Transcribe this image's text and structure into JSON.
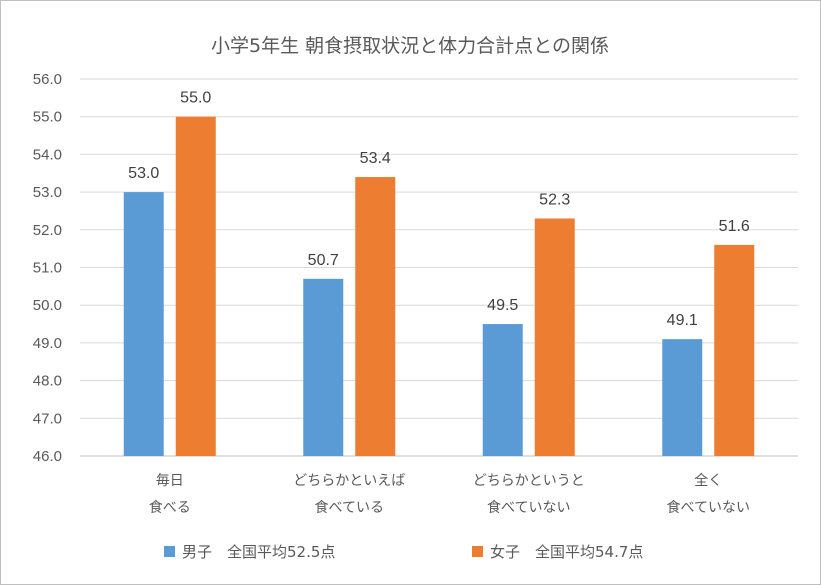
{
  "chart_data": {
    "type": "bar",
    "title": "小学5年生 朝食摂取状況と体力合計点との関係",
    "categories": [
      [
        "毎日",
        "食べる"
      ],
      [
        "どちらかといえば",
        "食べている"
      ],
      [
        "どちらかというと",
        "食べていない"
      ],
      [
        "全く",
        "食べていない"
      ]
    ],
    "series": [
      {
        "name": "男子　全国平均52.5点",
        "color": "#5b9bd5",
        "values": [
          53.0,
          50.7,
          49.5,
          49.1
        ]
      },
      {
        "name": "女子　全国平均54.7点",
        "color": "#ed7d31",
        "values": [
          55.0,
          53.4,
          52.3,
          51.6
        ]
      }
    ],
    "ylim": [
      46.0,
      56.0
    ],
    "ytick_step": 1.0,
    "yticks": [
      "46.0",
      "47.0",
      "48.0",
      "49.0",
      "50.0",
      "51.0",
      "52.0",
      "53.0",
      "54.0",
      "55.0",
      "56.0"
    ],
    "grid": true,
    "legend": "bottom",
    "value_format_decimals": 1
  }
}
